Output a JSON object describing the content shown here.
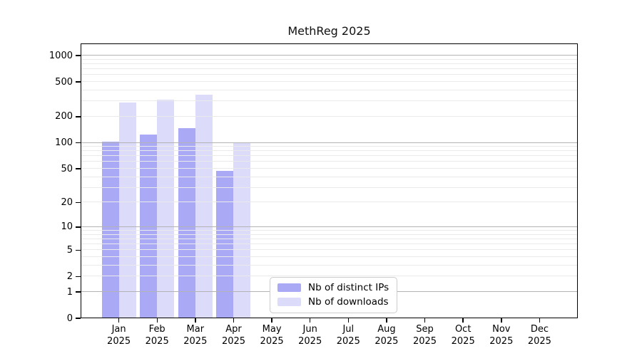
{
  "title": "MethReg 2025",
  "chart_data": {
    "type": "bar",
    "title": "MethReg 2025",
    "categories": [
      "Jan 2025",
      "Feb 2025",
      "Mar 2025",
      "Apr 2025",
      "May 2025",
      "Jun 2025",
      "Jul 2025",
      "Aug 2025",
      "Sep 2025",
      "Oct 2025",
      "Nov 2025",
      "Dec 2025"
    ],
    "x": [
      {
        "month": "Jan",
        "year": "2025"
      },
      {
        "month": "Feb",
        "year": "2025"
      },
      {
        "month": "Mar",
        "year": "2025"
      },
      {
        "month": "Apr",
        "year": "2025"
      },
      {
        "month": "May",
        "year": "2025"
      },
      {
        "month": "Jun",
        "year": "2025"
      },
      {
        "month": "Jul",
        "year": "2025"
      },
      {
        "month": "Aug",
        "year": "2025"
      },
      {
        "month": "Sep",
        "year": "2025"
      },
      {
        "month": "Oct",
        "year": "2025"
      },
      {
        "month": "Nov",
        "year": "2025"
      },
      {
        "month": "Dec",
        "year": "2025"
      }
    ],
    "series": [
      {
        "name": "Nb of distinct IPs",
        "key": "ips",
        "color": "#a9a9f6",
        "values": [
          103,
          124,
          147,
          47,
          0,
          0,
          0,
          0,
          0,
          0,
          0,
          0
        ]
      },
      {
        "name": "Nb of downloads",
        "key": "downloads",
        "color": "#dcdcfa",
        "values": [
          290,
          312,
          356,
          100,
          0,
          0,
          0,
          0,
          0,
          0,
          0,
          0
        ]
      }
    ],
    "xlabel": "",
    "ylabel": "",
    "y_scale": "log1p",
    "y_ticks": [
      0,
      1,
      2,
      5,
      10,
      20,
      50,
      100,
      200,
      500,
      1000
    ],
    "ylim": [
      0,
      1380
    ],
    "grid": {
      "on": true,
      "minor_color": "#eaeaea",
      "major_color": "#b3b3b3",
      "major_at": [
        1,
        10,
        100,
        1000
      ],
      "drawn_above_bars": true
    },
    "legend_position": "lower-center"
  }
}
